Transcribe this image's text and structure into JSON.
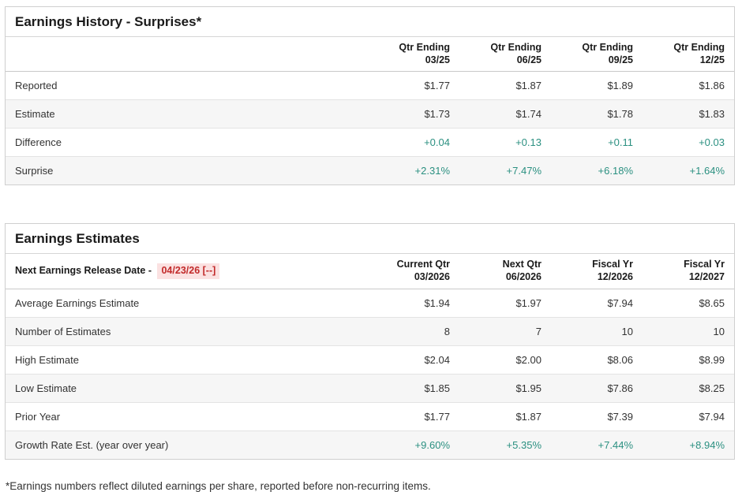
{
  "colors": {
    "positive_value_green": "#2b9081",
    "release_date_red": "#c22a2a",
    "release_date_bg_pink": "#fbe1e1",
    "row_stripe_gray": "#f6f6f6",
    "border_gray": "#cfcfcf"
  },
  "history": {
    "title": "Earnings History - Surprises*",
    "columns": [
      {
        "label": "Qtr Ending",
        "period": "03/25"
      },
      {
        "label": "Qtr Ending",
        "period": "06/25"
      },
      {
        "label": "Qtr Ending",
        "period": "09/25"
      },
      {
        "label": "Qtr Ending",
        "period": "12/25"
      }
    ],
    "rows": [
      {
        "label": "Reported",
        "values": [
          "$1.77",
          "$1.87",
          "$1.89",
          "$1.86"
        ]
      },
      {
        "label": "Estimate",
        "values": [
          "$1.73",
          "$1.74",
          "$1.78",
          "$1.83"
        ]
      },
      {
        "label": "Difference",
        "values": [
          "+0.04",
          "+0.13",
          "+0.11",
          "+0.03"
        ]
      },
      {
        "label": "Surprise",
        "values": [
          "+2.31%",
          "+7.47%",
          "+6.18%",
          "+1.64%"
        ]
      }
    ]
  },
  "estimates": {
    "title": "Earnings Estimates",
    "release_date_label": "Next Earnings Release Date -",
    "release_date": "04/23/26 [--]",
    "columns": [
      {
        "label": "Current Qtr",
        "period": "03/2026"
      },
      {
        "label": "Next Qtr",
        "period": "06/2026"
      },
      {
        "label": "Fiscal Yr",
        "period": "12/2026"
      },
      {
        "label": "Fiscal Yr",
        "period": "12/2027"
      }
    ],
    "rows": [
      {
        "label": "Average Earnings Estimate",
        "values": [
          "$1.94",
          "$1.97",
          "$7.94",
          "$8.65"
        ]
      },
      {
        "label": "Number of Estimates",
        "values": [
          "8",
          "7",
          "10",
          "10"
        ]
      },
      {
        "label": "High Estimate",
        "values": [
          "$2.04",
          "$2.00",
          "$8.06",
          "$8.99"
        ]
      },
      {
        "label": "Low Estimate",
        "values": [
          "$1.85",
          "$1.95",
          "$7.86",
          "$8.25"
        ]
      },
      {
        "label": "Prior Year",
        "values": [
          "$1.77",
          "$1.87",
          "$7.39",
          "$7.94"
        ]
      },
      {
        "label": "Growth Rate Est. (year over year)",
        "values": [
          "+9.60%",
          "+5.35%",
          "+7.44%",
          "+8.94%"
        ]
      }
    ]
  },
  "footnote": "*Earnings numbers reflect diluted earnings per share, reported before non-recurring items."
}
